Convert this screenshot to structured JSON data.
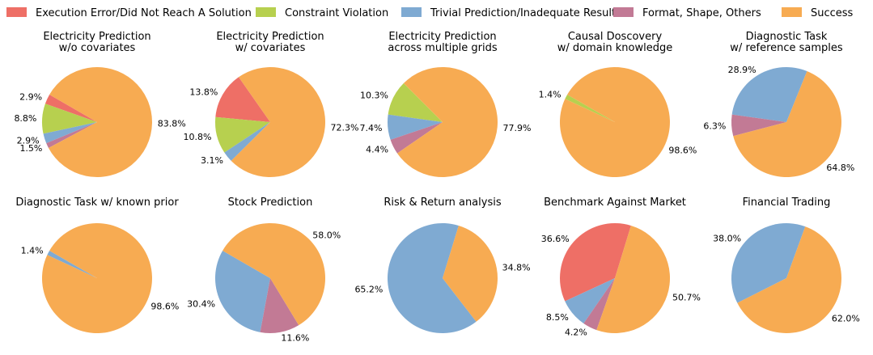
{
  "legend": [
    {
      "key": "error",
      "label": "Execution Error/Did Not Reach A Solution",
      "color": "#EE6F66"
    },
    {
      "key": "constraint",
      "label": "Constraint Violation",
      "color": "#B7D04F"
    },
    {
      "key": "trivial",
      "label": "Trivial Prediction/Inadequate Result",
      "color": "#7FAAD2"
    },
    {
      "key": "format",
      "label": "Format, Shape, Others",
      "color": "#C27A95"
    },
    {
      "key": "success",
      "label": "Success",
      "color": "#F7AB52"
    }
  ],
  "chart_data": [
    {
      "type": "pie",
      "title": [
        "Electricity Prediction",
        "w/o covariates"
      ],
      "slices": [
        {
          "cat": "error",
          "value": 2.9,
          "label": "2.9%"
        },
        {
          "cat": "constraint",
          "value": 8.8,
          "label": "8.8%"
        },
        {
          "cat": "trivial",
          "value": 2.9,
          "label": "2.9%"
        },
        {
          "cat": "format",
          "value": 1.5,
          "label": "1.5%"
        },
        {
          "cat": "success",
          "value": 83.8,
          "label": "83.8%"
        }
      ],
      "start_angle": 150
    },
    {
      "type": "pie",
      "title": [
        "Electricity Prediction",
        "w/ covariates"
      ],
      "slices": [
        {
          "cat": "error",
          "value": 13.8,
          "label": "13.8%"
        },
        {
          "cat": "constraint",
          "value": 10.8,
          "label": "10.8%"
        },
        {
          "cat": "trivial",
          "value": 3.1,
          "label": "3.1%"
        },
        {
          "cat": "format",
          "value": 0
        },
        {
          "cat": "success",
          "value": 72.3,
          "label": "72.3%"
        }
      ],
      "start_angle": 125
    },
    {
      "type": "pie",
      "title": [
        "Electricity Prediction",
        "across multiple grids"
      ],
      "slices": [
        {
          "cat": "error",
          "value": 0
        },
        {
          "cat": "constraint",
          "value": 10.3,
          "label": "10.3%"
        },
        {
          "cat": "trivial",
          "value": 7.4,
          "label": "7.4%"
        },
        {
          "cat": "format",
          "value": 4.4,
          "label": "4.4%"
        },
        {
          "cat": "success",
          "value": 77.9,
          "label": "77.9%"
        }
      ],
      "start_angle": 135
    },
    {
      "type": "pie",
      "title": [
        "Causal Doscovery",
        "w/ domain knowledge"
      ],
      "slices": [
        {
          "cat": "error",
          "value": 0
        },
        {
          "cat": "constraint",
          "value": 1.4,
          "label": "1.4%"
        },
        {
          "cat": "trivial",
          "value": 0
        },
        {
          "cat": "format",
          "value": 0
        },
        {
          "cat": "success",
          "value": 98.6,
          "label": "98.6%"
        }
      ],
      "start_angle": 150
    },
    {
      "type": "pie",
      "title": [
        "Diagnostic Task",
        "w/ reference samples"
      ],
      "slices": [
        {
          "cat": "error",
          "value": 0
        },
        {
          "cat": "constraint",
          "value": 0
        },
        {
          "cat": "trivial",
          "value": 28.9,
          "label": "28.9%"
        },
        {
          "cat": "format",
          "value": 6.3,
          "label": "6.3%"
        },
        {
          "cat": "success",
          "value": 64.8,
          "label": "64.8%"
        }
      ],
      "start_angle": 68
    },
    {
      "type": "pie",
      "title": [
        "Diagnostic Task w/ known prior"
      ],
      "slices": [
        {
          "cat": "error",
          "value": 0
        },
        {
          "cat": "constraint",
          "value": 0
        },
        {
          "cat": "trivial",
          "value": 1.4,
          "label": "1.4%"
        },
        {
          "cat": "format",
          "value": 0
        },
        {
          "cat": "success",
          "value": 98.6,
          "label": "98.6%"
        }
      ],
      "start_angle": 150
    },
    {
      "type": "pie",
      "title": [
        "Stock Prediction"
      ],
      "slices": [
        {
          "cat": "error",
          "value": 0
        },
        {
          "cat": "constraint",
          "value": 0
        },
        {
          "cat": "trivial",
          "value": 30.4,
          "label": "30.4%"
        },
        {
          "cat": "format",
          "value": 11.6,
          "label": "11.6%"
        },
        {
          "cat": "success",
          "value": 58.0,
          "label": "58.0%"
        }
      ],
      "start_angle": 150
    },
    {
      "type": "pie",
      "title": [
        "Risk & Return analysis"
      ],
      "slices": [
        {
          "cat": "error",
          "value": 0
        },
        {
          "cat": "constraint",
          "value": 0
        },
        {
          "cat": "trivial",
          "value": 65.2,
          "label": "65.2%"
        },
        {
          "cat": "format",
          "value": 0
        },
        {
          "cat": "success",
          "value": 34.8,
          "label": "34.8%"
        }
      ],
      "start_angle": 73
    },
    {
      "type": "pie",
      "title": [
        "Benchmark Against Market"
      ],
      "slices": [
        {
          "cat": "error",
          "value": 36.6,
          "label": "36.6%"
        },
        {
          "cat": "constraint",
          "value": 0
        },
        {
          "cat": "trivial",
          "value": 8.5,
          "label": "8.5%"
        },
        {
          "cat": "format",
          "value": 4.2,
          "label": "4.2%"
        },
        {
          "cat": "success",
          "value": 50.7,
          "label": "50.7%"
        }
      ],
      "start_angle": 73
    },
    {
      "type": "pie",
      "title": [
        "Financial Trading"
      ],
      "slices": [
        {
          "cat": "error",
          "value": 0
        },
        {
          "cat": "constraint",
          "value": 0
        },
        {
          "cat": "trivial",
          "value": 38.0,
          "label": "38.0%"
        },
        {
          "cat": "format",
          "value": 0
        },
        {
          "cat": "success",
          "value": 62.0,
          "label": "62.0%"
        }
      ],
      "start_angle": 70
    }
  ]
}
